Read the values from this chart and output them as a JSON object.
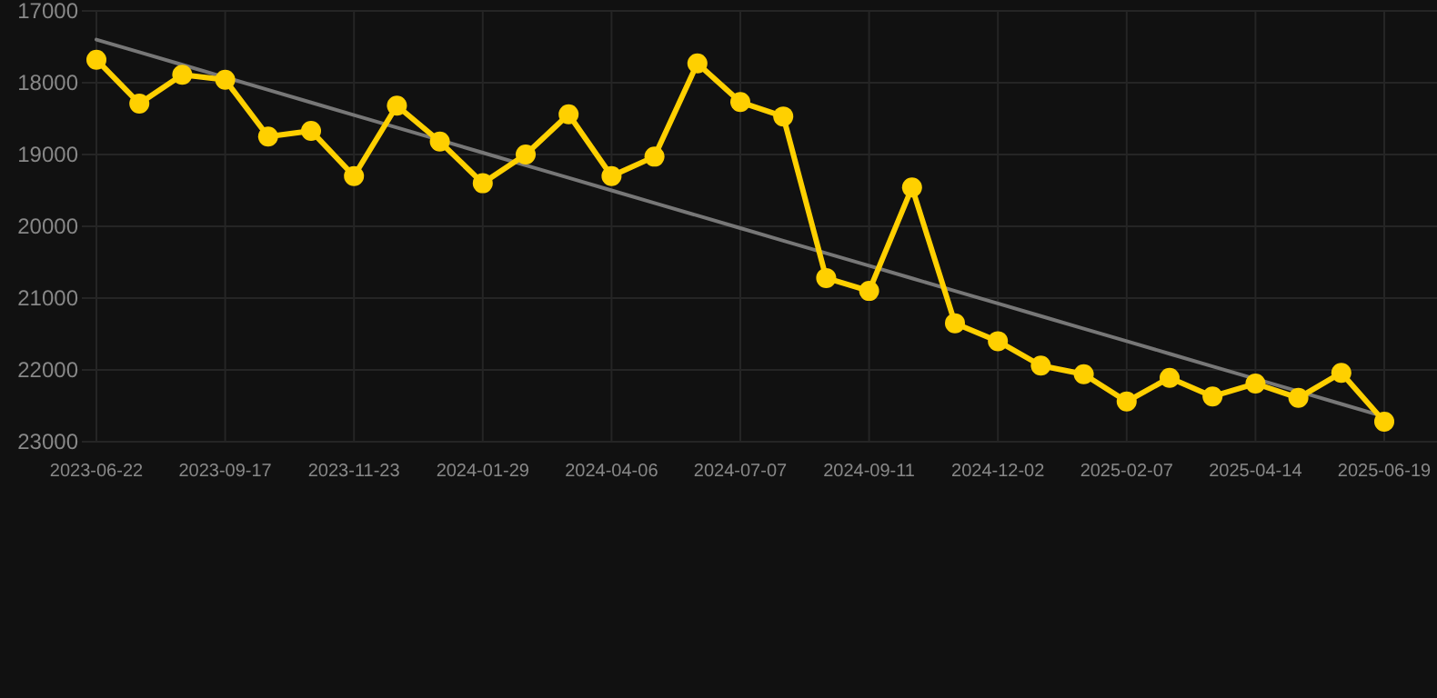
{
  "chart_data": {
    "type": "line",
    "categories": [
      "2023-06-22",
      null,
      null,
      "2023-09-17",
      null,
      null,
      "2023-11-23",
      null,
      null,
      "2024-01-29",
      null,
      null,
      "2024-04-06",
      null,
      null,
      "2024-07-07",
      null,
      null,
      "2024-09-11",
      null,
      null,
      "2024-12-02",
      null,
      null,
      "2025-02-07",
      null,
      null,
      "2025-04-14",
      null,
      null,
      "2025-06-19"
    ],
    "series": [
      {
        "color": "#ffd000",
        "marker": "circle",
        "values": [
          17680,
          18290,
          17890,
          17960,
          18750,
          18670,
          19300,
          18320,
          18820,
          19400,
          19000,
          18440,
          19300,
          19030,
          17730,
          18270,
          18470,
          20720,
          20900,
          19460,
          21350,
          21600,
          21940,
          22060,
          22440,
          22110,
          22370,
          22190,
          22390,
          22040,
          22720
        ]
      },
      {
        "type": "line",
        "color": "#777777",
        "marker": "none",
        "values": [
          17400,
          17575,
          17750,
          17925,
          18100,
          18275,
          18450,
          18625,
          18800,
          18975,
          19150,
          19325,
          19500,
          19675,
          19850,
          20025,
          20200,
          20375,
          20550,
          20725,
          20900,
          21075,
          21250,
          21425,
          21600,
          21775,
          21950,
          22125,
          22300,
          22475,
          22650
        ]
      }
    ],
    "ylim": [
      23000,
      17000
    ],
    "yticks": [
      17000,
      18000,
      19000,
      20000,
      21000,
      22000,
      23000
    ],
    "grid": true
  }
}
